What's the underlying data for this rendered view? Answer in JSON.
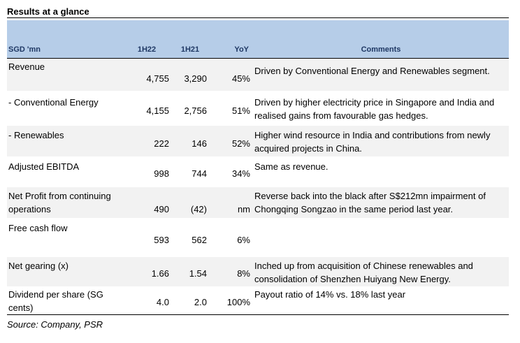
{
  "title": "Results at a glance",
  "headers": {
    "label": "SGD 'mn",
    "col1": "1H22",
    "col2": "1H21",
    "col3": "YoY",
    "col4": "Comments"
  },
  "rows": [
    {
      "label": "Revenue",
      "v1": "4,755",
      "v2": "3,290",
      "yoy": "45%",
      "comment": "Driven by Conventional Energy and Renewables segment."
    },
    {
      "label": " - Conventional Energy",
      "v1": "4,155",
      "v2": "2,756",
      "yoy": "51%",
      "comment": "Driven by higher electricity price in Singapore and India and realised gains from favourable gas hedges."
    },
    {
      "label": " - Renewables",
      "v1": "222",
      "v2": "146",
      "yoy": "52%",
      "comment": "Higher wind resource in India and contributions from newly acquired projects in China."
    },
    {
      "label": "Adjusted EBITDA",
      "v1": "998",
      "v2": "744",
      "yoy": "34%",
      "comment": "Same as revenue."
    },
    {
      "label": "Net Profit from continuing operations",
      "v1": "490",
      "v2": "(42)",
      "yoy": "nm",
      "comment": "Reverse back into the black after S$212mn impairment of Chongqing Songzao in the same period last year."
    },
    {
      "label": "Free cash flow",
      "v1": "593",
      "v2": "562",
      "yoy": "6%",
      "comment": ""
    },
    {
      "label": "Net gearing (x)",
      "v1": "1.66",
      "v2": "1.54",
      "yoy": "8%",
      "comment": "Inched up from acquisition of Chinese renewables and consolidation of Shenzhen Huiyang New Energy."
    },
    {
      "label": "Dividend per share (SG cents)",
      "v1": "4.0",
      "v2": "2.0",
      "yoy": "100%",
      "comment": "Payout ratio of 14% vs. 18% last year"
    }
  ],
  "source": "Source: Company, PSR"
}
